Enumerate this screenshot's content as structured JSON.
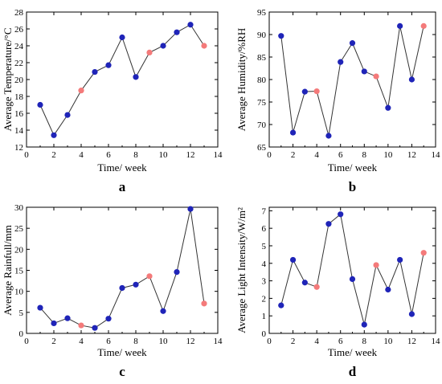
{
  "chart_data": [
    {
      "type": "scatter",
      "panel_label": "a",
      "xlabel": "Time/ week",
      "ylabel": "Average Temperature/°C",
      "xlim": [
        0,
        14
      ],
      "ylim": [
        12,
        28
      ],
      "xticks": [
        0,
        2,
        4,
        6,
        8,
        10,
        12,
        14
      ],
      "yticks": [
        12,
        14,
        16,
        18,
        20,
        22,
        24,
        26,
        28
      ],
      "grid": false,
      "colors": {
        "blue": "#1f24b8",
        "pink": "#f47a7a"
      },
      "x": [
        1,
        2,
        3,
        4,
        5,
        6,
        7,
        8,
        9,
        10,
        11,
        12,
        13
      ],
      "y": [
        17.0,
        13.4,
        15.8,
        18.7,
        20.9,
        21.7,
        25.0,
        20.3,
        23.2,
        24.0,
        25.6,
        26.5,
        24.0
      ],
      "marker_colors": [
        "blue",
        "blue",
        "blue",
        "pink",
        "blue",
        "blue",
        "blue",
        "blue",
        "pink",
        "blue",
        "blue",
        "blue",
        "pink"
      ]
    },
    {
      "type": "scatter",
      "panel_label": "b",
      "xlabel": "Time/ week",
      "ylabel": "Average Humidity/%RH",
      "xlim": [
        0,
        14
      ],
      "ylim": [
        65,
        95
      ],
      "xticks": [
        0,
        2,
        4,
        6,
        8,
        10,
        12,
        14
      ],
      "yticks": [
        65,
        70,
        75,
        80,
        85,
        90,
        95
      ],
      "grid": false,
      "colors": {
        "blue": "#1f24b8",
        "pink": "#f47a7a"
      },
      "x": [
        1,
        2,
        3,
        4,
        5,
        6,
        7,
        8,
        9,
        10,
        11,
        12,
        13
      ],
      "y": [
        89.7,
        68.2,
        77.3,
        77.4,
        67.5,
        83.9,
        88.1,
        81.8,
        80.7,
        73.7,
        91.9,
        80.0,
        91.9
      ],
      "marker_colors": [
        "blue",
        "blue",
        "blue",
        "pink",
        "blue",
        "blue",
        "blue",
        "blue",
        "pink",
        "blue",
        "blue",
        "blue",
        "pink"
      ]
    },
    {
      "type": "scatter",
      "panel_label": "c",
      "xlabel": "Time/ week",
      "ylabel": "Average Rainfull/mm",
      "xlim": [
        0,
        14
      ],
      "ylim": [
        0,
        30
      ],
      "xticks": [
        0,
        2,
        4,
        6,
        8,
        10,
        12,
        14
      ],
      "yticks": [
        0,
        5,
        10,
        15,
        20,
        25,
        30
      ],
      "grid": false,
      "colors": {
        "blue": "#1f24b8",
        "pink": "#f47a7a"
      },
      "x": [
        1,
        2,
        3,
        4,
        5,
        6,
        7,
        8,
        9,
        10,
        11,
        12,
        13
      ],
      "y": [
        6.1,
        2.4,
        3.6,
        1.9,
        1.3,
        3.5,
        10.8,
        11.6,
        13.6,
        5.3,
        14.6,
        29.6,
        7.1
      ],
      "marker_colors": [
        "blue",
        "blue",
        "blue",
        "pink",
        "blue",
        "blue",
        "blue",
        "blue",
        "pink",
        "blue",
        "blue",
        "blue",
        "pink"
      ]
    },
    {
      "type": "scatter",
      "panel_label": "d",
      "xlabel": "Time/ week",
      "ylabel": "Average Light Intensity/W/m²",
      "xlim": [
        0,
        14
      ],
      "ylim": [
        0,
        7.2
      ],
      "xticks": [
        0,
        2,
        4,
        6,
        8,
        10,
        12,
        14
      ],
      "yticks": [
        0,
        1,
        2,
        3,
        4,
        5,
        6,
        7
      ],
      "grid": false,
      "colors": {
        "blue": "#1f24b8",
        "pink": "#f47a7a"
      },
      "x": [
        1,
        2,
        3,
        4,
        5,
        6,
        7,
        8,
        9,
        10,
        11,
        12,
        13
      ],
      "y": [
        1.6,
        4.2,
        2.9,
        2.65,
        6.25,
        6.8,
        3.1,
        0.5,
        3.9,
        2.5,
        4.2,
        1.1,
        4.6
      ],
      "marker_colors": [
        "blue",
        "blue",
        "blue",
        "pink",
        "blue",
        "blue",
        "blue",
        "blue",
        "pink",
        "blue",
        "blue",
        "blue",
        "pink"
      ]
    }
  ]
}
